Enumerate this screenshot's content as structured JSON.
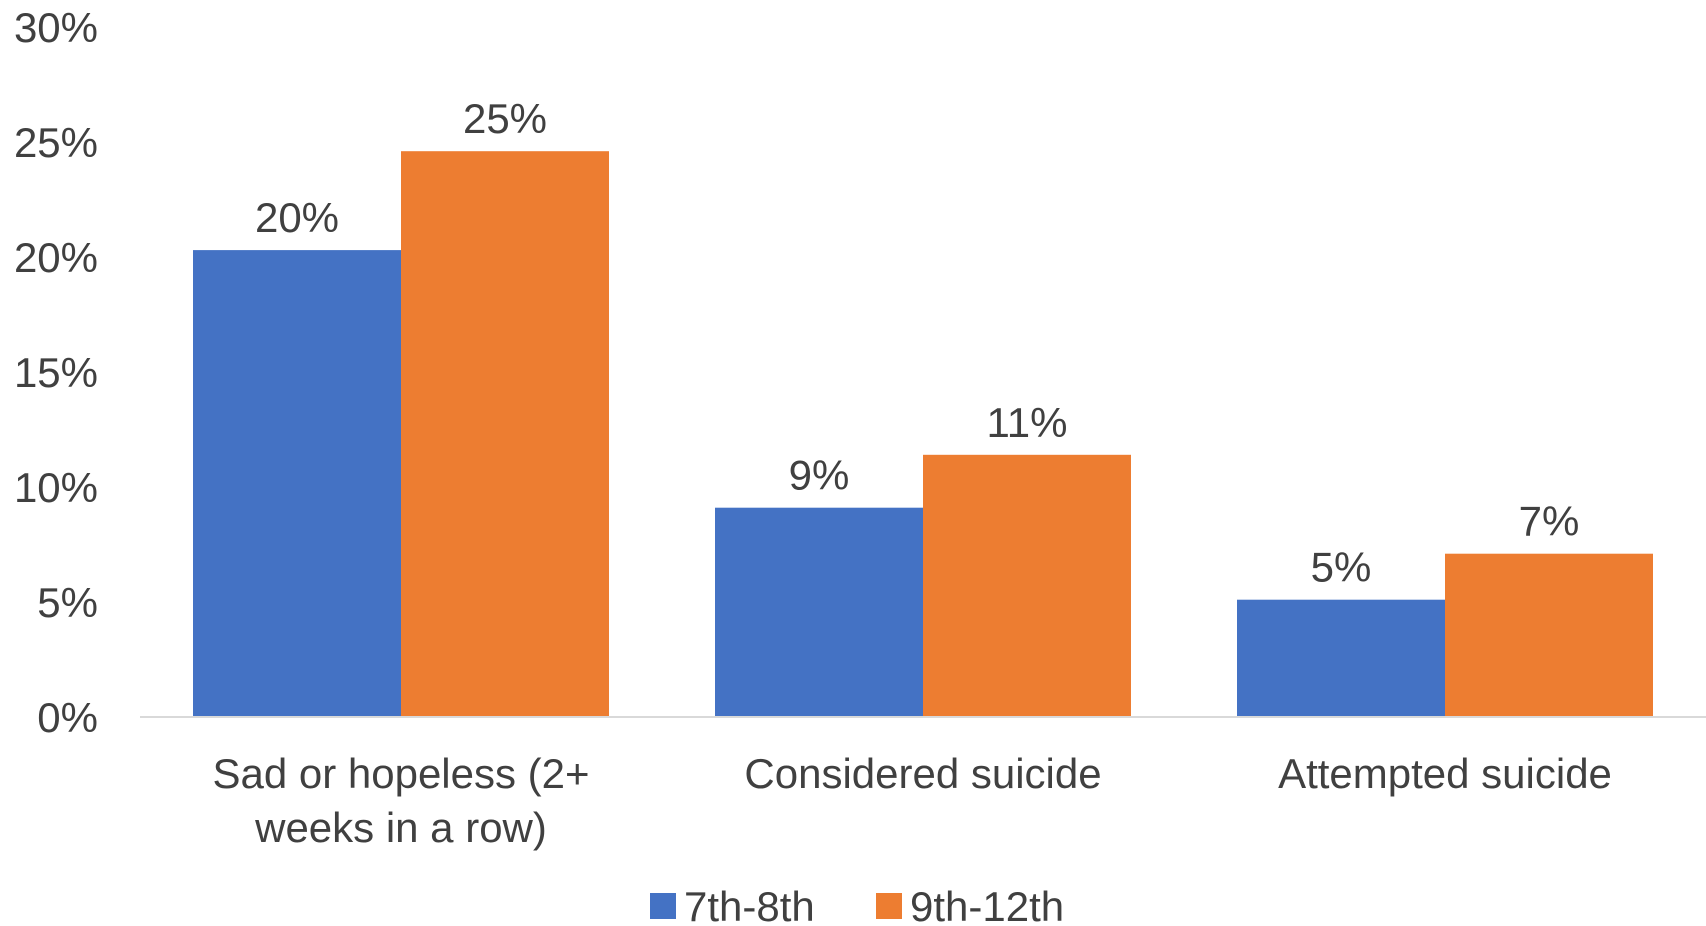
{
  "chart_data": {
    "type": "bar",
    "title": "",
    "xlabel": "",
    "ylabel": "",
    "ylim": [
      0,
      30
    ],
    "yticks": [
      "0%",
      "5%",
      "10%",
      "15%",
      "20%",
      "25%",
      "30%"
    ],
    "ytick_values": [
      0,
      5,
      10,
      15,
      20,
      25,
      30
    ],
    "grid": false,
    "legend_position": "bottom",
    "categories": [
      [
        "Sad or hopeless (2+",
        "weeks in a row)"
      ],
      [
        "Considered suicide"
      ],
      [
        "Attempted suicide"
      ]
    ],
    "series": [
      {
        "name": "7th-8th",
        "color": "#4472c4",
        "values": [
          20.3,
          9.1,
          5.1
        ],
        "labels": [
          "20%",
          "9%",
          "5%"
        ]
      },
      {
        "name": "9th-12th",
        "color": "#ed7d31",
        "values": [
          24.6,
          11.4,
          7.1
        ],
        "labels": [
          "25%",
          "11%",
          "7%"
        ]
      }
    ]
  }
}
